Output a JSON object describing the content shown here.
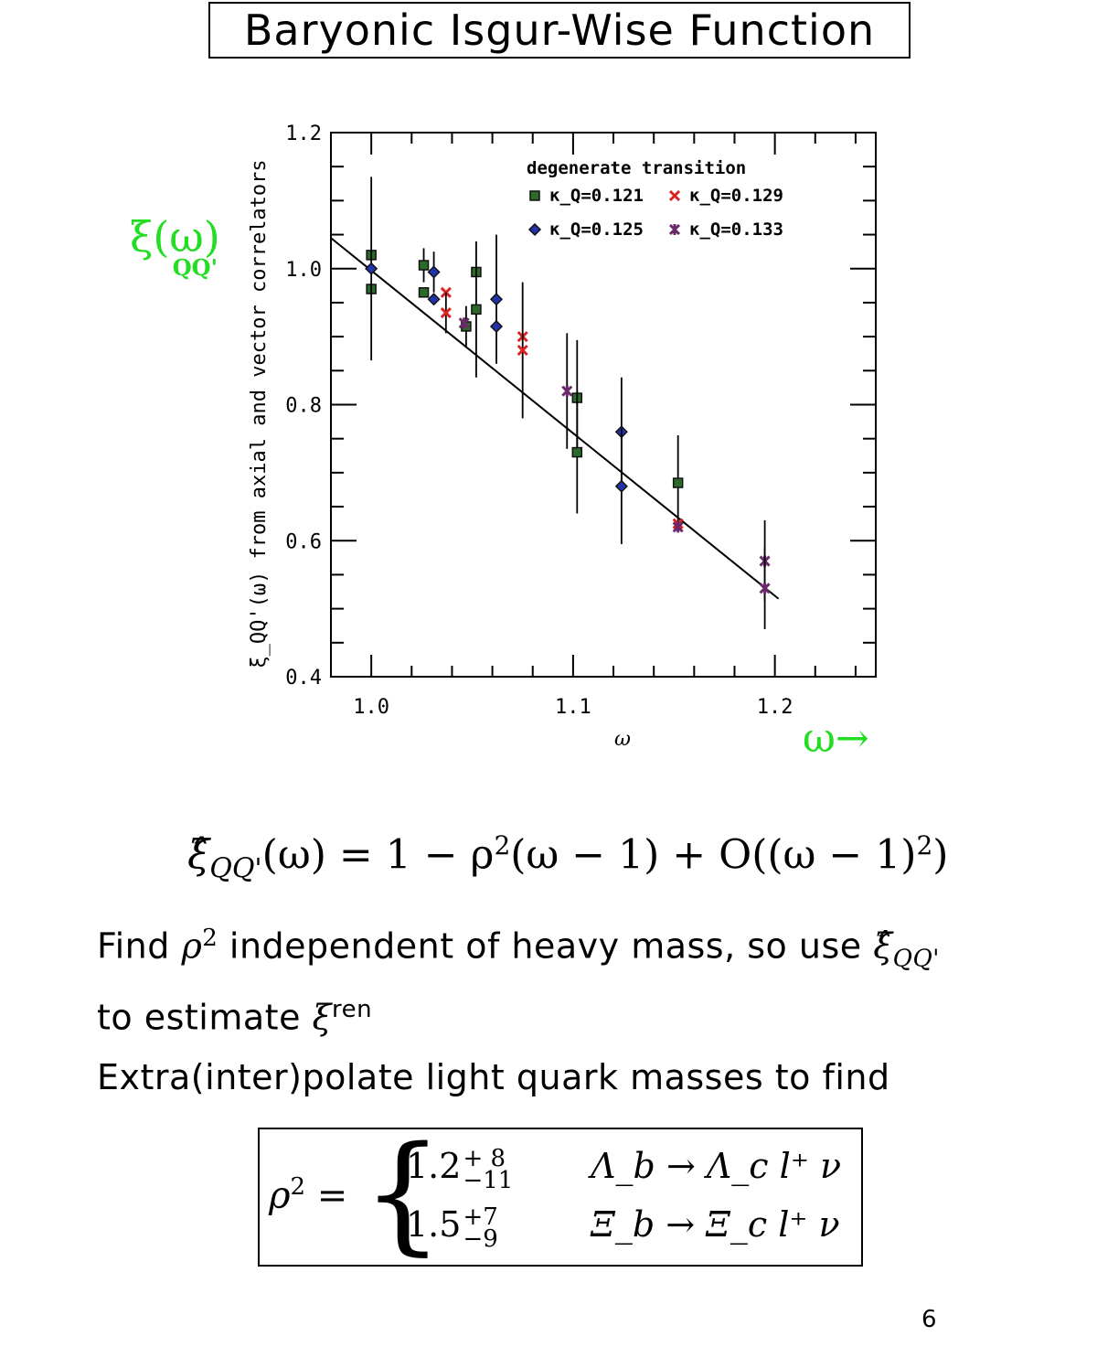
{
  "page": {
    "title": "Baryonic Isgur-Wise Function",
    "page_number": "6"
  },
  "annotations": {
    "y_handwritten": "ξ(ω)",
    "y_handwritten_sub": "QQ'",
    "x_handwritten": "ω→"
  },
  "formula": {
    "lhs": "ξ̂",
    "lhs_sub": "QQ'",
    "body": "(ω) = 1 − ρ",
    "sup1": "2",
    "mid": "(ω − 1) + O((ω − 1)",
    "sup2": "2",
    "end": ")"
  },
  "text": {
    "line1_a": "Find ",
    "line1_rho": "ρ",
    "line1_rho_sup": "2",
    "line1_b": " independent of heavy mass, so use ",
    "line1_xi": "ξ̂",
    "line1_xi_sub": "QQ'",
    "line2_a": "to estimate ",
    "line2_xi": "ξ",
    "line2_xi_sup": "ren",
    "line3": "Extra(inter)polate light quark masses to find"
  },
  "result": {
    "lhs": "ρ",
    "lhs_sup": "2",
    "eq": " =",
    "cases": [
      {
        "value": "1.2",
        "plus": "+ 8",
        "minus": "−11",
        "process": "Λ_b → Λ_c l⁺ ν"
      },
      {
        "value": "1.5",
        "plus": "+7",
        "minus": "−9",
        "process": "Ξ_b → Ξ_c l⁺ ν"
      }
    ]
  },
  "chart_data": {
    "type": "scatter",
    "title": "",
    "xlabel": "ω",
    "ylabel": "ξ_QQ'(ω)   from axial and vector correlators",
    "xlim": [
      0.98,
      1.25
    ],
    "ylim": [
      0.4,
      1.2
    ],
    "x_ticks": [
      "1.0",
      "1.1",
      "1.2"
    ],
    "y_ticks": [
      "0.4",
      "0.6",
      "0.8",
      "1.0",
      "1.2"
    ],
    "legend_title": "degenerate transition",
    "legend_position": "top-right",
    "series": [
      {
        "name": "κ_Q=0.121",
        "marker": "square",
        "color": "#2a6b2a",
        "points": [
          [
            1.0,
            1.02,
            0.0
          ],
          [
            1.0,
            0.97,
            0.0
          ],
          [
            1.026,
            1.005,
            0.025
          ],
          [
            1.026,
            0.965,
            0.0
          ],
          [
            1.047,
            0.915,
            0.03
          ],
          [
            1.052,
            0.995,
            0.0
          ],
          [
            1.052,
            0.94,
            0.1
          ],
          [
            1.102,
            0.81,
            0.085
          ],
          [
            1.102,
            0.73,
            0.09
          ],
          [
            1.152,
            0.685,
            0.07
          ]
        ]
      },
      {
        "name": "κ_Q=0.125",
        "marker": "diamond",
        "color": "#2233aa",
        "points": [
          [
            1.0,
            1.0,
            0.135
          ],
          [
            1.031,
            0.995,
            0.03
          ],
          [
            1.031,
            0.955,
            0.0
          ],
          [
            1.062,
            0.955,
            0.095
          ],
          [
            1.062,
            0.915,
            0.0
          ],
          [
            1.124,
            0.76,
            0.08
          ],
          [
            1.124,
            0.68,
            0.085
          ]
        ]
      },
      {
        "name": "κ_Q=0.129",
        "marker": "x",
        "color": "#dd2222",
        "points": [
          [
            1.037,
            0.965,
            0.0
          ],
          [
            1.037,
            0.935,
            0.03
          ],
          [
            1.075,
            0.9,
            0.0
          ],
          [
            1.075,
            0.88,
            0.1
          ],
          [
            1.152,
            0.625,
            0.0
          ]
        ]
      },
      {
        "name": "κ_Q=0.133",
        "marker": "star",
        "color": "#6a2a6a",
        "points": [
          [
            1.046,
            0.92,
            0.0
          ],
          [
            1.097,
            0.82,
            0.085
          ],
          [
            1.152,
            0.62,
            0.0
          ],
          [
            1.195,
            0.57,
            0.06
          ],
          [
            1.195,
            0.53,
            0.06
          ]
        ]
      }
    ],
    "fit_line": {
      "x": [
        0.98,
        1.2
      ],
      "y": [
        1.045,
        0.52
      ]
    }
  }
}
